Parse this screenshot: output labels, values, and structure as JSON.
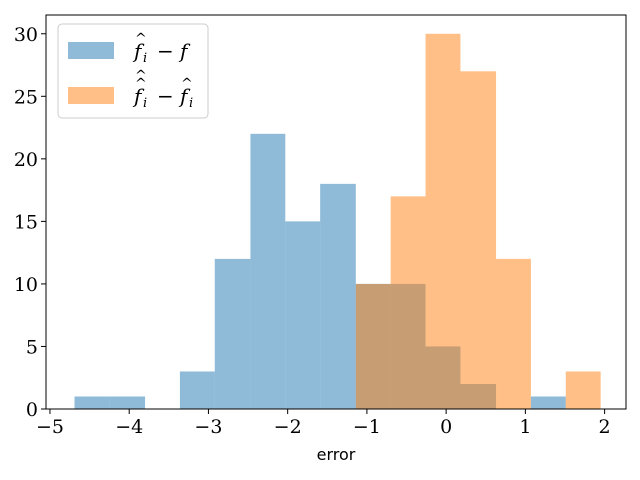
{
  "chart_data": {
    "type": "histogram",
    "title": "",
    "xlabel": "error",
    "ylabel": "",
    "xlim": [
      -5.05,
      2.27
    ],
    "ylim": [
      0,
      31.5
    ],
    "x_ticks": [
      -5,
      -4,
      -3,
      -2,
      -1,
      0,
      1,
      2
    ],
    "x_tick_labels": [
      "−5",
      "−4",
      "−3",
      "−2",
      "−1",
      "0",
      "1",
      "2"
    ],
    "y_ticks": [
      0,
      5,
      10,
      15,
      20,
      25,
      30
    ],
    "y_tick_labels": [
      "0",
      "5",
      "10",
      "15",
      "20",
      "25",
      "30"
    ],
    "grid": false,
    "legend_position": "top-left",
    "series": [
      {
        "name": "f̂ᵢ − f",
        "color": "#1f77b4",
        "alpha": 0.5,
        "bins": [
          {
            "x0": -4.69,
            "x1": -4.25,
            "value": 1
          },
          {
            "x0": -4.25,
            "x1": -3.8,
            "value": 1
          },
          {
            "x0": -3.8,
            "x1": -3.36,
            "value": 0
          },
          {
            "x0": -3.36,
            "x1": -2.92,
            "value": 3
          },
          {
            "x0": -2.92,
            "x1": -2.47,
            "value": 12
          },
          {
            "x0": -2.47,
            "x1": -2.03,
            "value": 22
          },
          {
            "x0": -2.03,
            "x1": -1.59,
            "value": 15
          },
          {
            "x0": -1.59,
            "x1": -1.14,
            "value": 18
          },
          {
            "x0": -1.14,
            "x1": -0.7,
            "value": 10
          },
          {
            "x0": -0.7,
            "x1": -0.26,
            "value": 10
          },
          {
            "x0": -0.26,
            "x1": 0.18,
            "value": 5
          },
          {
            "x0": 0.18,
            "x1": 0.63,
            "value": 2
          },
          {
            "x0": 0.63,
            "x1": 1.07,
            "value": 0
          },
          {
            "x0": 1.07,
            "x1": 1.51,
            "value": 1
          }
        ]
      },
      {
        "name": "f̂̂ᵢ − f̂ᵢ",
        "color": "#ff7f0e",
        "alpha": 0.5,
        "bins": [
          {
            "x0": -1.14,
            "x1": -0.7,
            "value": 10
          },
          {
            "x0": -0.7,
            "x1": -0.26,
            "value": 17
          },
          {
            "x0": -0.26,
            "x1": 0.18,
            "value": 30
          },
          {
            "x0": 0.18,
            "x1": 0.63,
            "value": 27
          },
          {
            "x0": 0.63,
            "x1": 1.07,
            "value": 12
          },
          {
            "x0": 1.07,
            "x1": 1.51,
            "value": 0
          },
          {
            "x0": 1.51,
            "x1": 1.95,
            "value": 3
          }
        ]
      }
    ]
  }
}
